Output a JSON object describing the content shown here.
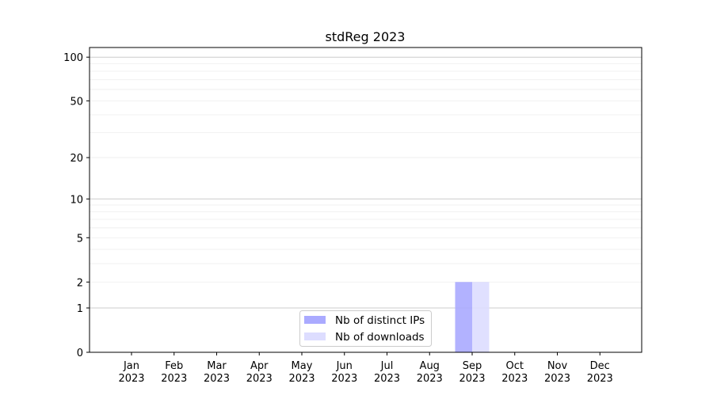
{
  "chart_data": {
    "type": "bar",
    "title": "stdReg 2023",
    "xlabel": "",
    "ylabel": "",
    "yscale": "log(1+y)",
    "ylim": [
      0,
      116
    ],
    "yticks": [
      0,
      1,
      2,
      5,
      10,
      20,
      50,
      100
    ],
    "ytick_labels": [
      "0",
      "1",
      "2",
      "5",
      "10",
      "20",
      "50",
      "100"
    ],
    "grid": true,
    "legend_position": "lower-center",
    "categories": [
      "Jan\n2023",
      "Feb\n2023",
      "Mar\n2023",
      "Apr\n2023",
      "May\n2023",
      "Jun\n2023",
      "Jul\n2023",
      "Aug\n2023",
      "Sep\n2023",
      "Oct\n2023",
      "Nov\n2023",
      "Dec\n2023"
    ],
    "series": [
      {
        "name": "Nb of distinct IPs",
        "color": "#aaaaff",
        "values": [
          0,
          0,
          0,
          0,
          0,
          0,
          0,
          0,
          2,
          0,
          0,
          0
        ]
      },
      {
        "name": "Nb of downloads",
        "color": "#ddddff",
        "values": [
          0,
          0,
          0,
          0,
          0,
          0,
          0,
          0,
          2,
          0,
          0,
          0
        ]
      }
    ]
  }
}
